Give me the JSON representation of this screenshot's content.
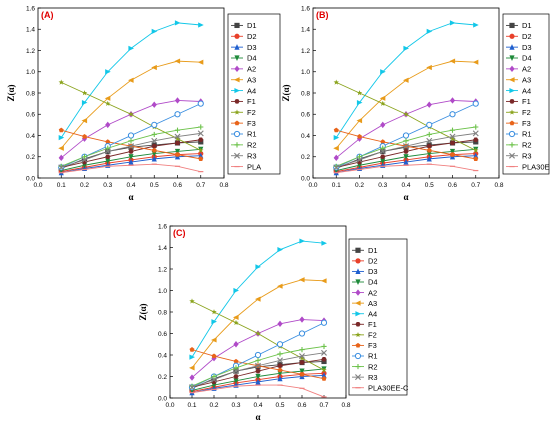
{
  "chart_data": [
    {
      "type": "line",
      "panel_label": "(A)",
      "xlabel": "α",
      "ylabel": "Z(α)",
      "xlim": [
        0.0,
        0.8
      ],
      "ylim": [
        0.0,
        1.6
      ],
      "x_ticks": [
        "0.0",
        "0.1",
        "0.2",
        "0.3",
        "0.4",
        "0.5",
        "0.6",
        "0.7",
        "0.8"
      ],
      "y_ticks": [
        "0.0",
        "0.2",
        "0.4",
        "0.6",
        "0.8",
        "1.0",
        "1.2",
        "1.4",
        "1.6"
      ],
      "legend_position": "right",
      "x": [
        0.1,
        0.2,
        0.3,
        0.4,
        0.5,
        0.6,
        0.7
      ],
      "series": [
        {
          "name": "D1",
          "color": "#444444",
          "marker": "square",
          "values": [
            0.09,
            0.18,
            0.25,
            0.29,
            0.31,
            0.33,
            0.34
          ]
        },
        {
          "name": "D2",
          "color": "#e8402a",
          "marker": "circle",
          "values": [
            0.06,
            0.1,
            0.14,
            0.17,
            0.2,
            0.22,
            0.23
          ]
        },
        {
          "name": "D3",
          "color": "#1f5fcf",
          "marker": "triangle-up",
          "values": [
            0.05,
            0.09,
            0.12,
            0.15,
            0.18,
            0.2,
            0.21
          ]
        },
        {
          "name": "D4",
          "color": "#1e8a3a",
          "marker": "triangle-down",
          "values": [
            0.07,
            0.12,
            0.16,
            0.2,
            0.23,
            0.25,
            0.27
          ]
        },
        {
          "name": "A2",
          "color": "#b04ac8",
          "marker": "diamond",
          "values": [
            0.19,
            0.37,
            0.5,
            0.6,
            0.69,
            0.73,
            0.72
          ]
        },
        {
          "name": "A3",
          "color": "#e89b1a",
          "marker": "triangle-left",
          "values": [
            0.28,
            0.54,
            0.75,
            0.92,
            1.04,
            1.1,
            1.09
          ]
        },
        {
          "name": "A4",
          "color": "#12c7e8",
          "marker": "triangle-right",
          "values": [
            0.38,
            0.71,
            1.0,
            1.22,
            1.38,
            1.46,
            1.44
          ]
        },
        {
          "name": "F1",
          "color": "#7a2828",
          "marker": "hexagon",
          "values": [
            0.1,
            0.15,
            0.2,
            0.25,
            0.3,
            0.33,
            0.36
          ]
        },
        {
          "name": "F2",
          "color": "#8aa31c",
          "marker": "star",
          "values": [
            0.9,
            0.8,
            0.7,
            0.6,
            0.48,
            0.37,
            0.26
          ]
        },
        {
          "name": "F3",
          "color": "#e8641a",
          "marker": "pentagon",
          "values": [
            0.45,
            0.39,
            0.34,
            0.3,
            0.26,
            0.22,
            0.18
          ]
        },
        {
          "name": "R1",
          "color": "#3a8ee0",
          "marker": "open-circle",
          "values": [
            0.1,
            0.2,
            0.3,
            0.4,
            0.5,
            0.6,
            0.7
          ]
        },
        {
          "name": "R2",
          "color": "#6cc24a",
          "marker": "plus",
          "values": [
            0.11,
            0.2,
            0.28,
            0.35,
            0.41,
            0.45,
            0.48
          ]
        },
        {
          "name": "R3",
          "color": "#7f7f7f",
          "marker": "x",
          "values": [
            0.1,
            0.17,
            0.25,
            0.3,
            0.35,
            0.39,
            0.42
          ]
        },
        {
          "name": "PLA",
          "color": "#f08080",
          "marker": "dash",
          "values": [
            0.05,
            0.08,
            0.11,
            0.12,
            0.13,
            0.11,
            0.06
          ]
        }
      ]
    },
    {
      "type": "line",
      "panel_label": "(B)",
      "xlabel": "α",
      "ylabel": "Z(α)",
      "xlim": [
        0.0,
        0.8
      ],
      "ylim": [
        0.0,
        1.6
      ],
      "x_ticks": [
        "0.0",
        "0.1",
        "0.2",
        "0.3",
        "0.4",
        "0.5",
        "0.6",
        "0.7",
        "0.8"
      ],
      "y_ticks": [
        "0.0",
        "0.2",
        "0.4",
        "0.6",
        "0.8",
        "1.0",
        "1.2",
        "1.4",
        "1.6"
      ],
      "legend_position": "right",
      "x": [
        0.1,
        0.2,
        0.3,
        0.4,
        0.5,
        0.6,
        0.7
      ],
      "series": [
        {
          "name": "D1",
          "color": "#444444",
          "marker": "square",
          "values": [
            0.09,
            0.18,
            0.25,
            0.29,
            0.31,
            0.33,
            0.34
          ]
        },
        {
          "name": "D2",
          "color": "#e8402a",
          "marker": "circle",
          "values": [
            0.06,
            0.1,
            0.14,
            0.17,
            0.2,
            0.22,
            0.23
          ]
        },
        {
          "name": "D3",
          "color": "#1f5fcf",
          "marker": "triangle-up",
          "values": [
            0.05,
            0.09,
            0.12,
            0.15,
            0.18,
            0.2,
            0.21
          ]
        },
        {
          "name": "D4",
          "color": "#1e8a3a",
          "marker": "triangle-down",
          "values": [
            0.07,
            0.12,
            0.16,
            0.2,
            0.23,
            0.25,
            0.27
          ]
        },
        {
          "name": "A2",
          "color": "#b04ac8",
          "marker": "diamond",
          "values": [
            0.19,
            0.37,
            0.5,
            0.6,
            0.69,
            0.73,
            0.72
          ]
        },
        {
          "name": "A3",
          "color": "#e89b1a",
          "marker": "triangle-left",
          "values": [
            0.28,
            0.54,
            0.75,
            0.92,
            1.04,
            1.1,
            1.09
          ]
        },
        {
          "name": "A4",
          "color": "#12c7e8",
          "marker": "triangle-right",
          "values": [
            0.38,
            0.71,
            1.0,
            1.22,
            1.38,
            1.46,
            1.44
          ]
        },
        {
          "name": "F1",
          "color": "#7a2828",
          "marker": "hexagon",
          "values": [
            0.1,
            0.15,
            0.2,
            0.25,
            0.3,
            0.33,
            0.36
          ]
        },
        {
          "name": "F2",
          "color": "#8aa31c",
          "marker": "star",
          "values": [
            0.9,
            0.8,
            0.7,
            0.6,
            0.48,
            0.37,
            0.26
          ]
        },
        {
          "name": "F3",
          "color": "#e8641a",
          "marker": "pentagon",
          "values": [
            0.45,
            0.39,
            0.34,
            0.3,
            0.26,
            0.22,
            0.18
          ]
        },
        {
          "name": "R1",
          "color": "#3a8ee0",
          "marker": "open-circle",
          "values": [
            0.1,
            0.2,
            0.3,
            0.4,
            0.5,
            0.6,
            0.7
          ]
        },
        {
          "name": "R2",
          "color": "#6cc24a",
          "marker": "plus",
          "values": [
            0.11,
            0.2,
            0.28,
            0.35,
            0.41,
            0.45,
            0.48
          ]
        },
        {
          "name": "R3",
          "color": "#7f7f7f",
          "marker": "x",
          "values": [
            0.1,
            0.17,
            0.25,
            0.3,
            0.35,
            0.39,
            0.42
          ]
        },
        {
          "name": "PLA30EE",
          "color": "#f08080",
          "marker": "dash",
          "values": [
            0.05,
            0.08,
            0.11,
            0.12,
            0.13,
            0.11,
            0.07
          ]
        }
      ]
    },
    {
      "type": "line",
      "panel_label": "(C)",
      "xlabel": "α",
      "ylabel": "Z(α)",
      "xlim": [
        0.0,
        0.8
      ],
      "ylim": [
        0.0,
        1.6
      ],
      "x_ticks": [
        "0.0",
        "0.1",
        "0.2",
        "0.3",
        "0.4",
        "0.5",
        "0.6",
        "0.7",
        "0.8"
      ],
      "y_ticks": [
        "0.0",
        "0.2",
        "0.4",
        "0.6",
        "0.8",
        "1.0",
        "1.2",
        "1.4",
        "1.6"
      ],
      "legend_position": "right",
      "x": [
        0.1,
        0.2,
        0.3,
        0.4,
        0.5,
        0.6,
        0.7
      ],
      "series": [
        {
          "name": "D1",
          "color": "#444444",
          "marker": "square",
          "values": [
            0.09,
            0.18,
            0.25,
            0.29,
            0.31,
            0.33,
            0.34
          ]
        },
        {
          "name": "D2",
          "color": "#e8402a",
          "marker": "circle",
          "values": [
            0.06,
            0.1,
            0.14,
            0.17,
            0.2,
            0.22,
            0.23
          ]
        },
        {
          "name": "D3",
          "color": "#1f5fcf",
          "marker": "triangle-up",
          "values": [
            0.05,
            0.09,
            0.12,
            0.15,
            0.18,
            0.2,
            0.21
          ]
        },
        {
          "name": "D4",
          "color": "#1e8a3a",
          "marker": "triangle-down",
          "values": [
            0.07,
            0.12,
            0.16,
            0.2,
            0.23,
            0.25,
            0.27
          ]
        },
        {
          "name": "A2",
          "color": "#b04ac8",
          "marker": "diamond",
          "values": [
            0.19,
            0.37,
            0.5,
            0.6,
            0.69,
            0.73,
            0.72
          ]
        },
        {
          "name": "A3",
          "color": "#e89b1a",
          "marker": "triangle-left",
          "values": [
            0.28,
            0.54,
            0.75,
            0.92,
            1.04,
            1.1,
            1.09
          ]
        },
        {
          "name": "A4",
          "color": "#12c7e8",
          "marker": "triangle-right",
          "values": [
            0.38,
            0.71,
            1.0,
            1.22,
            1.38,
            1.46,
            1.44
          ]
        },
        {
          "name": "F1",
          "color": "#7a2828",
          "marker": "hexagon",
          "values": [
            0.1,
            0.15,
            0.2,
            0.25,
            0.3,
            0.33,
            0.36
          ]
        },
        {
          "name": "F2",
          "color": "#8aa31c",
          "marker": "star",
          "values": [
            0.9,
            0.8,
            0.7,
            0.6,
            0.48,
            0.37,
            0.26
          ]
        },
        {
          "name": "F3",
          "color": "#e8641a",
          "marker": "pentagon",
          "values": [
            0.45,
            0.39,
            0.34,
            0.3,
            0.26,
            0.22,
            0.18
          ]
        },
        {
          "name": "R1",
          "color": "#3a8ee0",
          "marker": "open-circle",
          "values": [
            0.1,
            0.2,
            0.3,
            0.4,
            0.5,
            0.6,
            0.7
          ]
        },
        {
          "name": "R2",
          "color": "#6cc24a",
          "marker": "plus",
          "values": [
            0.11,
            0.2,
            0.28,
            0.35,
            0.41,
            0.45,
            0.48
          ]
        },
        {
          "name": "R3",
          "color": "#7f7f7f",
          "marker": "x",
          "values": [
            0.1,
            0.17,
            0.25,
            0.3,
            0.35,
            0.39,
            0.42
          ]
        },
        {
          "name": "PLA30EE-C",
          "color": "#f08080",
          "marker": "dash",
          "values": [
            0.05,
            0.08,
            0.11,
            0.12,
            0.12,
            0.09,
            0.01
          ]
        }
      ]
    }
  ]
}
